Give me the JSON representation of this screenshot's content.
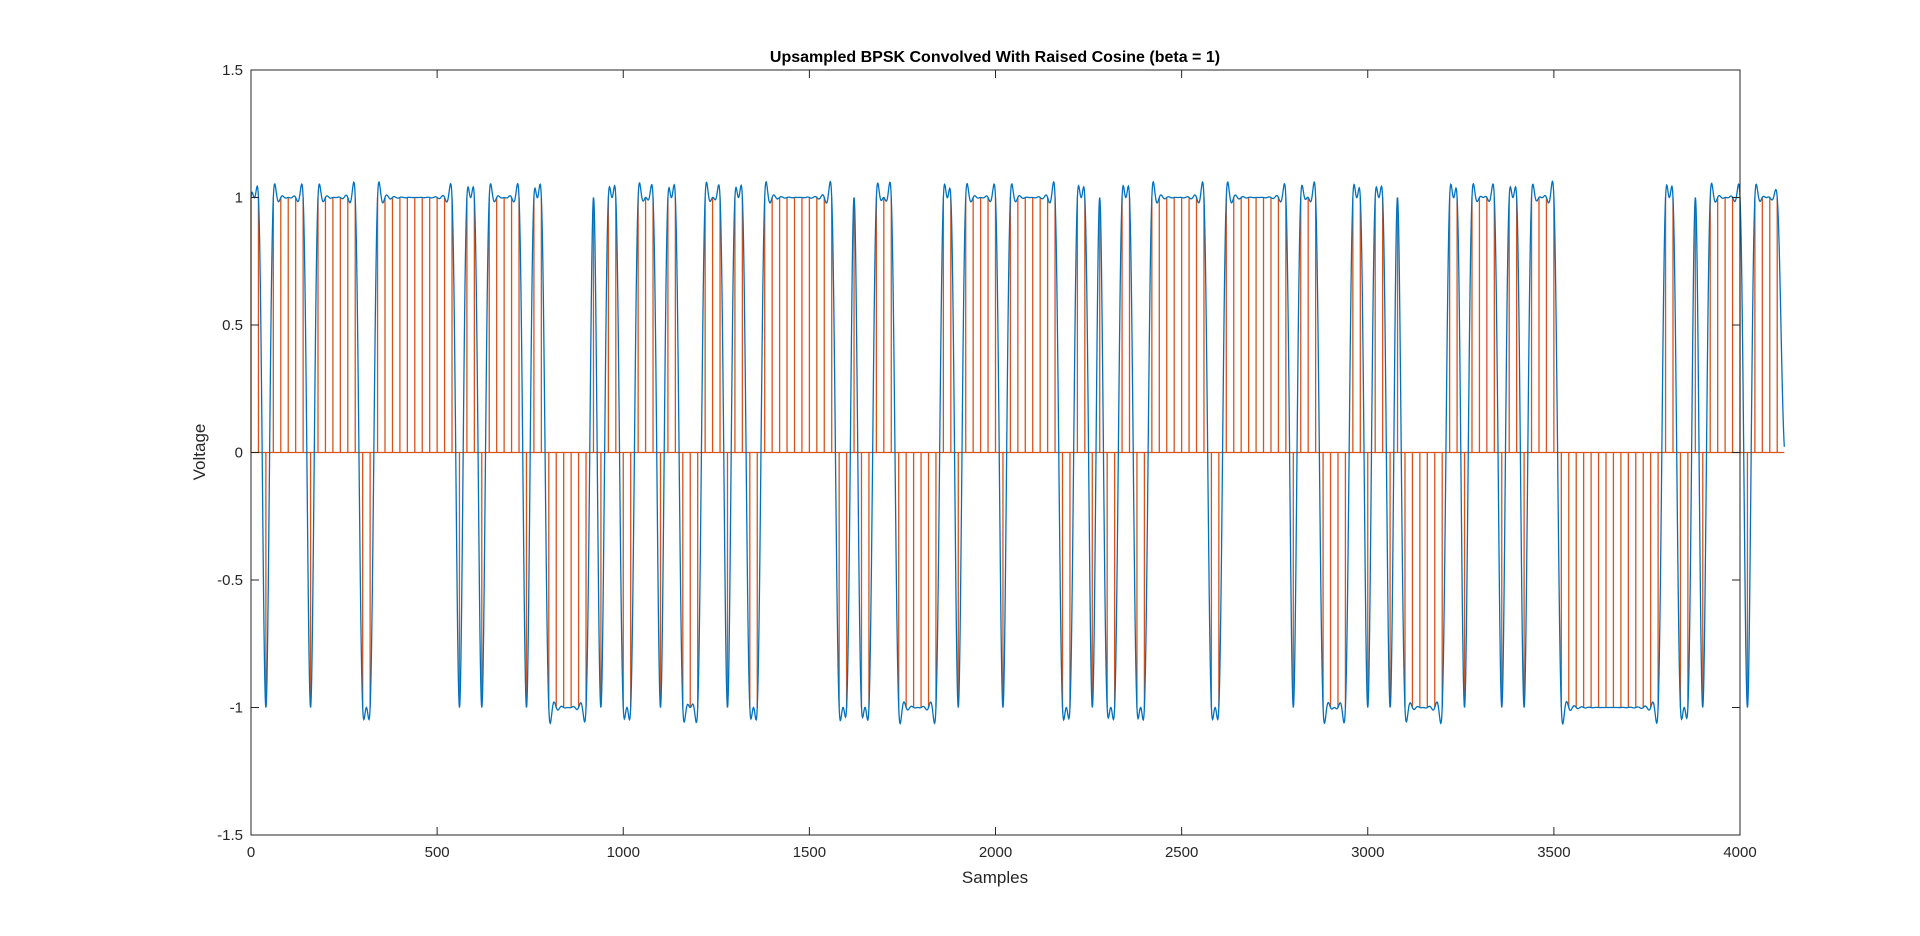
{
  "chart_data": {
    "type": "line",
    "title": "Upsampled BPSK Convolved With Raised Cosine (beta = 1)",
    "xlabel": "Samples",
    "ylabel": "Voltage",
    "xlim": [
      0,
      4000
    ],
    "ylim": [
      -1.5,
      1.5
    ],
    "xticks": [
      0,
      500,
      1000,
      1500,
      2000,
      2500,
      3000,
      3500,
      4000
    ],
    "xtick_labels": [
      "0",
      "500",
      "1000",
      "1500",
      "2000",
      "2500",
      "3000",
      "3500",
      "4000"
    ],
    "yticks": [
      -1.5,
      -1,
      -0.5,
      0,
      0.5,
      1,
      1.5
    ],
    "ytick_labels": [
      "-1.5",
      "-1",
      "-0.5",
      "0",
      "0.5",
      "1",
      "1.5"
    ],
    "grid": false,
    "legend": "none",
    "symbol_period": 20,
    "symbols": [
      1,
      1,
      -1,
      1,
      1,
      1,
      1,
      1,
      -1,
      1,
      1,
      1,
      1,
      1,
      1,
      -1,
      -1,
      1,
      1,
      1,
      1,
      1,
      1,
      1,
      1,
      1,
      1,
      1,
      -1,
      1,
      1,
      -1,
      1,
      1,
      1,
      1,
      1,
      -1,
      1,
      1,
      -1,
      -1,
      -1,
      -1,
      -1,
      -1,
      1,
      -1,
      1,
      1,
      -1,
      -1,
      1,
      1,
      1,
      -1,
      1,
      1,
      -1,
      -1,
      -1,
      1,
      1,
      1,
      -1,
      1,
      1,
      -1,
      -1,
      1,
      1,
      1,
      1,
      1,
      1,
      1,
      1,
      1,
      1,
      -1,
      -1,
      1,
      -1,
      -1,
      1,
      1,
      1,
      -1,
      -1,
      -1,
      -1,
      -1,
      -1,
      1,
      1,
      -1,
      1,
      1,
      1,
      1,
      1,
      -1,
      1,
      1,
      1,
      1,
      1,
      1,
      1,
      -1,
      -1,
      1,
      1,
      -1,
      1,
      -1,
      -1,
      1,
      1,
      -1,
      -1,
      1,
      1,
      1,
      1,
      1,
      1,
      1,
      1,
      -1,
      -1,
      1,
      1,
      1,
      1,
      1,
      1,
      1,
      1,
      1,
      -1,
      1,
      1,
      1,
      -1,
      -1,
      -1,
      -1,
      1,
      1,
      -1,
      1,
      1,
      -1,
      1,
      -1,
      -1,
      -1,
      -1,
      -1,
      -1,
      1,
      1,
      -1,
      1,
      1,
      1,
      1,
      -1,
      1,
      1,
      -1,
      1,
      1,
      1,
      1,
      -1,
      -1,
      -1,
      -1,
      -1,
      -1,
      -1,
      -1,
      -1,
      -1,
      -1,
      -1,
      -1,
      -1,
      1,
      1,
      -1,
      -1,
      1,
      -1,
      1,
      1,
      1,
      1,
      1,
      -1,
      1,
      1,
      1,
      1
    ],
    "series": [
      {
        "name": "",
        "kind": "stem",
        "description_values": "upsampled impulses of height +1 or -1 every 20 samples, zero elsewhere"
      },
      {
        "name": "",
        "kind": "line",
        "description_values": "raised-cosine filtered waveform, peaks about ±1.18"
      }
    ],
    "colors": {
      "signal": "#0072BD",
      "impulses": "#D95319",
      "axes": "#262626"
    }
  }
}
